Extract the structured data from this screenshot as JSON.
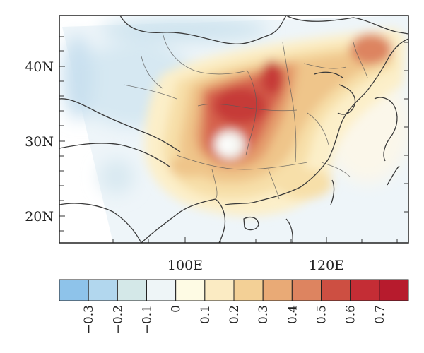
{
  "map": {
    "latitude_labels": [
      "40N",
      "30N",
      "20N"
    ],
    "longitude_labels": [
      "100E",
      "120E"
    ]
  },
  "colorbar": {
    "colors": [
      "#8ec3ea",
      "#b2d7ee",
      "#d4e8e8",
      "#eef5f7",
      "#fefbe4",
      "#fbebc3",
      "#f3d096",
      "#e9aa76",
      "#dd8460",
      "#cd4f42",
      "#c42d35",
      "#b71b2d"
    ],
    "labels": [
      "−0.3",
      "−0.2",
      "−0.1",
      "0",
      "0.1",
      "0.2",
      "0.3",
      "0.4",
      "0.5",
      "0.6",
      "0.7"
    ]
  }
}
